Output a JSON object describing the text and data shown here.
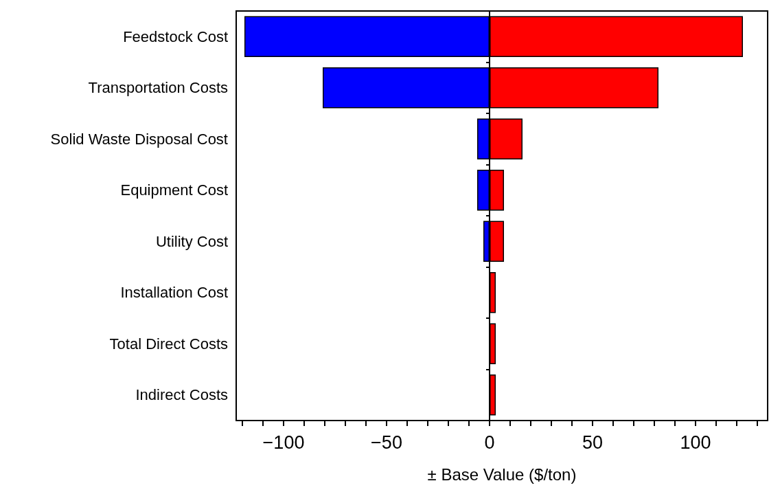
{
  "chart_data": {
    "type": "bar",
    "orientation": "horizontal",
    "stacked": true,
    "xlabel": "± Base Value ($/ton)",
    "categories": [
      "Feedstock Cost",
      "Transportation Costs",
      "Solid Waste Disposal Cost",
      "Equipment Cost",
      "Utility Cost",
      "Installation Cost",
      "Total Direct Costs",
      "Indirect Costs"
    ],
    "series": [
      {
        "color": "#0000ff",
        "values": [
          -119,
          -81,
          -6,
          -6,
          -3,
          null,
          null,
          null
        ]
      },
      {
        "color": "#ff0000",
        "values": [
          123,
          82,
          16,
          7,
          7,
          3,
          3,
          3
        ]
      }
    ],
    "xlim": [
      -123,
      135
    ],
    "xticks": [
      {
        "value": -120,
        "label": null
      },
      {
        "value": -110,
        "label": null
      },
      {
        "value": -100,
        "label": "−100"
      },
      {
        "value": -90,
        "label": null
      },
      {
        "value": -80,
        "label": null
      },
      {
        "value": -70,
        "label": null
      },
      {
        "value": -60,
        "label": null
      },
      {
        "value": -50,
        "label": "−50"
      },
      {
        "value": -40,
        "label": null
      },
      {
        "value": -30,
        "label": null
      },
      {
        "value": -20,
        "label": null
      },
      {
        "value": -10,
        "label": null
      },
      0,
      {
        "value": 10,
        "label": null
      },
      {
        "value": 20,
        "label": null
      },
      {
        "value": 30,
        "label": null
      },
      {
        "value": 40,
        "label": null
      },
      50,
      {
        "value": 60,
        "label": null
      },
      {
        "value": 70,
        "label": null
      },
      {
        "value": 80,
        "label": null
      },
      {
        "value": 90,
        "label": null
      },
      100,
      {
        "value": 110,
        "label": null
      },
      {
        "value": 120,
        "label": null
      },
      {
        "value": 130,
        "label": null
      }
    ]
  }
}
